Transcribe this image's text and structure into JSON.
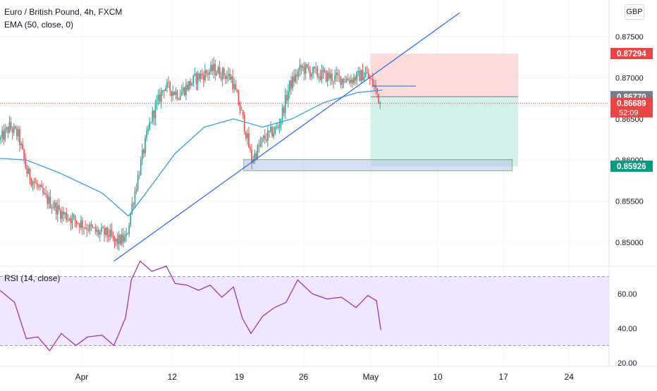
{
  "header": {
    "symbol": "Euro / British Pound, 4h, FXCM",
    "indicator": "EMA (50, close, 0)",
    "currency": "GBP"
  },
  "colors": {
    "up": "#26a69a",
    "down": "#ef5350",
    "ema": "#3d9fdb",
    "trendline": "#2962ff",
    "rsi": "#9c27b0",
    "rsi_band": "#ede1fb",
    "loss_zone": "#fbd5d3",
    "profit_zone": "#cfeee8",
    "support_box": "#b3c6e8",
    "support_border": "#1b7a1b",
    "price_line": "#e84545"
  },
  "chart_data": [
    {
      "type": "candlestick",
      "title": "Euro / British Pound, 4h, FXCM",
      "ylim": [
        0.8475,
        0.8795
      ],
      "y_ticks": [
        "0.87500",
        "0.87000",
        "0.86500",
        "0.86000",
        "0.85500",
        "0.85000"
      ],
      "x_ticks": [
        "Apr",
        "12",
        "19",
        "26",
        "May",
        "10",
        "17",
        "24"
      ],
      "series": [
        {
          "name": "EMA (50, close, 0)",
          "kind": "line"
        }
      ],
      "anchors": [
        {
          "t": 0,
          "p": 0.8625
        },
        {
          "t": 6,
          "p": 0.864
        },
        {
          "t": 12,
          "p": 0.863
        },
        {
          "t": 18,
          "p": 0.8585
        },
        {
          "t": 30,
          "p": 0.8555
        },
        {
          "t": 42,
          "p": 0.8535
        },
        {
          "t": 56,
          "p": 0.8522
        },
        {
          "t": 66,
          "p": 0.8512
        },
        {
          "t": 74,
          "p": 0.851
        },
        {
          "t": 78,
          "p": 0.85
        },
        {
          "t": 86,
          "p": 0.8505
        },
        {
          "t": 90,
          "p": 0.8545
        },
        {
          "t": 97,
          "p": 0.8605
        },
        {
          "t": 103,
          "p": 0.865
        },
        {
          "t": 112,
          "p": 0.869
        },
        {
          "t": 122,
          "p": 0.868
        },
        {
          "t": 134,
          "p": 0.87
        },
        {
          "t": 146,
          "p": 0.871
        },
        {
          "t": 158,
          "p": 0.87
        },
        {
          "t": 166,
          "p": 0.865
        },
        {
          "t": 172,
          "p": 0.86
        },
        {
          "t": 180,
          "p": 0.8625
        },
        {
          "t": 190,
          "p": 0.864
        },
        {
          "t": 198,
          "p": 0.869
        },
        {
          "t": 206,
          "p": 0.8712
        },
        {
          "t": 216,
          "p": 0.8705
        },
        {
          "t": 228,
          "p": 0.87
        },
        {
          "t": 240,
          "p": 0.8698
        },
        {
          "t": 250,
          "p": 0.8705
        },
        {
          "t": 256,
          "p": 0.869
        },
        {
          "t": 260,
          "p": 0.867
        }
      ],
      "ema_points": [
        {
          "t": 0,
          "p": 0.8602
        },
        {
          "t": 18,
          "p": 0.86
        },
        {
          "t": 40,
          "p": 0.8585
        },
        {
          "t": 70,
          "p": 0.856
        },
        {
          "t": 88,
          "p": 0.8532
        },
        {
          "t": 100,
          "p": 0.856
        },
        {
          "t": 120,
          "p": 0.8608
        },
        {
          "t": 140,
          "p": 0.864
        },
        {
          "t": 160,
          "p": 0.865
        },
        {
          "t": 180,
          "p": 0.864
        },
        {
          "t": 200,
          "p": 0.865
        },
        {
          "t": 222,
          "p": 0.867
        },
        {
          "t": 245,
          "p": 0.8682
        },
        {
          "t": 262,
          "p": 0.8685
        }
      ],
      "trendline": [
        {
          "t": 78,
          "p": 0.8477
        },
        {
          "t": 315,
          "p": 0.8779
        }
      ],
      "resistance_line": {
        "t1": 255,
        "t2": 285,
        "p": 0.869
      },
      "price_levels": [
        {
          "label": "0.87294",
          "p": 0.87294,
          "color": "#e84545"
        },
        {
          "label": "0.86770",
          "p": 0.8677,
          "color": "#787b86"
        },
        {
          "label": "0.86689",
          "p": 0.86689,
          "color": "#e84545",
          "countdown": "52:09"
        },
        {
          "label": "0.85926",
          "p": 0.85926,
          "color": "#089981"
        }
      ],
      "position": {
        "t1": 254,
        "t2": 355,
        "stop": 0.87294,
        "entry": 0.8677,
        "target": 0.85926
      },
      "support_zone": {
        "t1": 167,
        "t2": 351,
        "p_top": 0.86005,
        "p_bottom": 0.8587
      },
      "x_tick_bars": [
        {
          "label": "Apr",
          "t": 56
        },
        {
          "label": "12",
          "t": 118
        },
        {
          "label": "19",
          "t": 164
        },
        {
          "label": "26",
          "t": 208
        },
        {
          "label": "May",
          "t": 254
        },
        {
          "label": "10",
          "t": 300
        },
        {
          "label": "17",
          "t": 345
        },
        {
          "label": "24",
          "t": 390
        }
      ]
    },
    {
      "type": "line",
      "title": "RSI (14, close)",
      "ylim": [
        18,
        78
      ],
      "y_ticks": [
        "60.00",
        "40.00",
        "20.00"
      ],
      "band": [
        30,
        70
      ],
      "series": [
        {
          "name": "RSI (14, close)"
        }
      ],
      "rsi_points": [
        {
          "t": 0,
          "v": 62
        },
        {
          "t": 10,
          "v": 55
        },
        {
          "t": 18,
          "v": 34
        },
        {
          "t": 26,
          "v": 35
        },
        {
          "t": 34,
          "v": 27
        },
        {
          "t": 42,
          "v": 37
        },
        {
          "t": 52,
          "v": 30
        },
        {
          "t": 60,
          "v": 35
        },
        {
          "t": 70,
          "v": 36
        },
        {
          "t": 78,
          "v": 30
        },
        {
          "t": 86,
          "v": 46
        },
        {
          "t": 90,
          "v": 68
        },
        {
          "t": 96,
          "v": 79
        },
        {
          "t": 104,
          "v": 73
        },
        {
          "t": 114,
          "v": 76
        },
        {
          "t": 120,
          "v": 66
        },
        {
          "t": 128,
          "v": 65
        },
        {
          "t": 136,
          "v": 62
        },
        {
          "t": 144,
          "v": 65
        },
        {
          "t": 152,
          "v": 58
        },
        {
          "t": 160,
          "v": 64
        },
        {
          "t": 166,
          "v": 46
        },
        {
          "t": 172,
          "v": 37
        },
        {
          "t": 180,
          "v": 47
        },
        {
          "t": 188,
          "v": 52
        },
        {
          "t": 196,
          "v": 55
        },
        {
          "t": 204,
          "v": 68
        },
        {
          "t": 214,
          "v": 60
        },
        {
          "t": 224,
          "v": 57
        },
        {
          "t": 234,
          "v": 58
        },
        {
          "t": 244,
          "v": 52
        },
        {
          "t": 252,
          "v": 59
        },
        {
          "t": 258,
          "v": 56
        },
        {
          "t": 261,
          "v": 39
        }
      ]
    }
  ]
}
